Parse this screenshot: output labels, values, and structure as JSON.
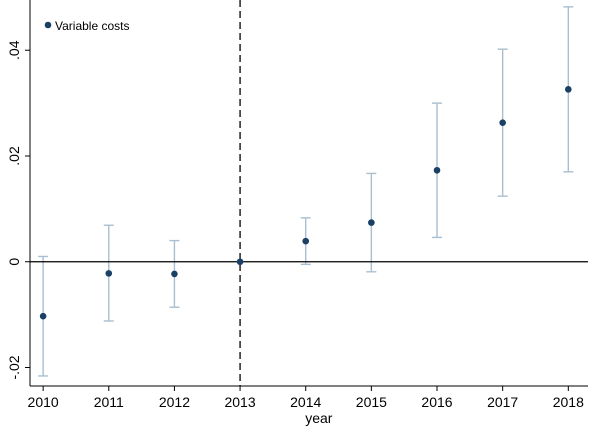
{
  "chart_data": {
    "type": "scatter",
    "title": "",
    "xlabel": "year",
    "ylabel": "",
    "x": [
      2010,
      2011,
      2012,
      2013,
      2014,
      2015,
      2016,
      2017,
      2018
    ],
    "xlim": [
      2009.8,
      2018.3
    ],
    "ylim": [
      -0.0235,
      0.0495
    ],
    "yticks": [
      -0.02,
      0,
      0.02,
      0.04
    ],
    "ytick_labels": [
      "-.02",
      "0",
      ".02",
      ".04"
    ],
    "grid": false,
    "reference_lines": {
      "horizontal_y": 0,
      "vertical_x": 2013
    },
    "legend": {
      "placement": "top-left"
    },
    "series": [
      {
        "name": "Variable costs",
        "color": "#1a4066",
        "ci_color": "#a9bfcf",
        "values": [
          -0.0103,
          -0.0022,
          -0.0023,
          0.0,
          0.0039,
          0.0074,
          0.0173,
          0.0263,
          0.0326
        ],
        "ci_low": [
          -0.0216,
          -0.0112,
          -0.0086,
          0.0,
          -0.0005,
          -0.0019,
          0.0046,
          0.0124,
          0.017
        ],
        "ci_high": [
          0.001,
          0.0069,
          0.004,
          0.0,
          0.0083,
          0.0167,
          0.03,
          0.0402,
          0.0482
        ]
      }
    ]
  }
}
